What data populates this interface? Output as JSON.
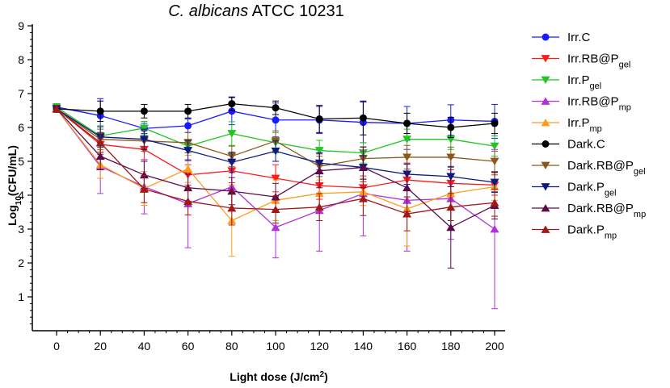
{
  "chart_data": {
    "type": "line",
    "title": "C. albicans ATCC 10231",
    "title_italic_part": "C. albicans",
    "title_rest": " ATCC 10231",
    "xlabel": {
      "main": "Light dose (J/cm",
      "sup": "2",
      "end": ")"
    },
    "ylabel": {
      "main": "Log",
      "sub": "10",
      "end": "(CFU/mL)"
    },
    "xlim": [
      0,
      200
    ],
    "ylim": [
      0,
      9
    ],
    "x_ticks": [
      0,
      20,
      40,
      60,
      80,
      100,
      120,
      140,
      160,
      180,
      200
    ],
    "y_ticks": [
      1,
      2,
      3,
      4,
      5,
      6,
      7,
      8,
      9
    ],
    "x": [
      0,
      20,
      40,
      60,
      80,
      100,
      120,
      140,
      160,
      180,
      200
    ],
    "series": [
      {
        "name": "Irr.C",
        "label_main": "Irr.C",
        "label_sub": "",
        "color": "#1a1aff",
        "marker": "circle",
        "values": [
          6.6,
          6.35,
          5.97,
          6.05,
          6.48,
          6.22,
          6.22,
          6.15,
          6.12,
          6.22,
          6.18
        ],
        "errors": [
          0.1,
          0.5,
          0.15,
          0.2,
          0.4,
          0.5,
          0.4,
          0.6,
          0.5,
          0.45,
          0.5
        ]
      },
      {
        "name": "Irr.RB@Pgel",
        "label_main": "Irr.RB@P",
        "label_sub": "gel",
        "color": "#ff1a1a",
        "marker": "triangle-down",
        "values": [
          6.55,
          5.5,
          5.35,
          4.6,
          4.72,
          4.5,
          4.28,
          4.22,
          4.45,
          4.35,
          4.3
        ],
        "errors": [
          0.1,
          0.3,
          0.3,
          0.3,
          0.35,
          0.4,
          0.4,
          0.35,
          0.5,
          0.4,
          0.3
        ]
      },
      {
        "name": "Irr.Pgel",
        "label_main": "Irr.P",
        "label_sub": "gel",
        "color": "#22c422",
        "marker": "triangle-down",
        "values": [
          6.6,
          5.75,
          5.98,
          5.45,
          5.82,
          5.55,
          5.32,
          5.25,
          5.65,
          5.65,
          5.45
        ],
        "errors": [
          0.1,
          0.3,
          0.2,
          0.2,
          0.35,
          0.3,
          0.3,
          0.3,
          0.3,
          0.3,
          0.3
        ]
      },
      {
        "name": "Irr.RB@Pmp",
        "label_main": "Irr.RB@P",
        "label_sub": "mp",
        "color": "#b030e0",
        "marker": "triangle-up",
        "values": [
          6.55,
          4.85,
          4.25,
          3.75,
          4.25,
          3.05,
          3.55,
          4.05,
          3.85,
          3.9,
          3.0
        ],
        "errors": [
          0.1,
          0.8,
          0.8,
          1.3,
          0.7,
          0.9,
          1.2,
          1.25,
          1.5,
          1.2,
          2.35
        ]
      },
      {
        "name": "Irr.Pmp",
        "label_main": "Irr.P",
        "label_sub": "mp",
        "color": "#ff9c1a",
        "marker": "triangle-up",
        "values": [
          6.55,
          4.9,
          4.2,
          4.78,
          3.25,
          3.85,
          4.05,
          4.1,
          3.6,
          4.05,
          4.25
        ],
        "errors": [
          0.1,
          0.4,
          0.5,
          0.4,
          1.05,
          0.6,
          0.4,
          0.4,
          1.1,
          0.5,
          0.4
        ]
      },
      {
        "name": "Dark.C",
        "label_main": "Dark.C",
        "label_sub": "",
        "color": "#000000",
        "marker": "circle",
        "values": [
          6.55,
          6.48,
          6.48,
          6.48,
          6.7,
          6.58,
          6.25,
          6.28,
          6.12,
          6.0,
          6.12
        ],
        "errors": [
          0.1,
          0.3,
          0.2,
          0.2,
          0.2,
          0.2,
          0.4,
          0.5,
          0.3,
          0.3,
          0.3
        ]
      },
      {
        "name": "Dark.RB@Pgel",
        "label_main": "Dark.RB@P",
        "label_sub": "gel",
        "color": "#8b5a1a",
        "marker": "triangle-down",
        "values": [
          6.55,
          5.65,
          5.6,
          5.55,
          5.15,
          5.6,
          4.85,
          5.08,
          5.12,
          5.12,
          5.0
        ],
        "errors": [
          0.1,
          0.3,
          0.3,
          0.3,
          0.3,
          0.3,
          0.3,
          0.35,
          0.35,
          0.3,
          0.3
        ]
      },
      {
        "name": "Dark.Pgel",
        "label_main": "Dark.P",
        "label_sub": "gel",
        "color": "#0a1a80",
        "marker": "triangle-down",
        "values": [
          6.55,
          5.72,
          5.65,
          5.32,
          4.97,
          5.3,
          4.95,
          4.82,
          4.62,
          4.55,
          4.38
        ],
        "errors": [
          0.1,
          0.3,
          0.3,
          0.3,
          0.3,
          0.3,
          0.3,
          0.35,
          0.3,
          0.3,
          0.3
        ]
      },
      {
        "name": "Dark.RB@Pmp",
        "label_main": "Dark.RB@P",
        "label_sub": "mp",
        "color": "#5a0a4a",
        "marker": "triangle-up",
        "values": [
          6.55,
          5.15,
          4.6,
          4.22,
          4.12,
          3.95,
          4.72,
          4.82,
          4.22,
          3.05,
          3.7
        ],
        "errors": [
          0.1,
          0.4,
          0.4,
          0.4,
          0.4,
          0.4,
          0.5,
          0.6,
          0.7,
          1.2,
          0.4
        ]
      },
      {
        "name": "Dark.Pmp",
        "label_main": "Dark.P",
        "label_sub": "mp",
        "color": "#a01818",
        "marker": "triangle-up",
        "values": [
          6.55,
          5.55,
          4.18,
          3.82,
          3.62,
          3.58,
          3.65,
          3.9,
          3.45,
          3.65,
          3.78
        ],
        "errors": [
          0.1,
          0.3,
          0.4,
          0.4,
          0.5,
          0.4,
          0.4,
          0.5,
          0.5,
          0.4,
          0.4
        ]
      }
    ]
  }
}
